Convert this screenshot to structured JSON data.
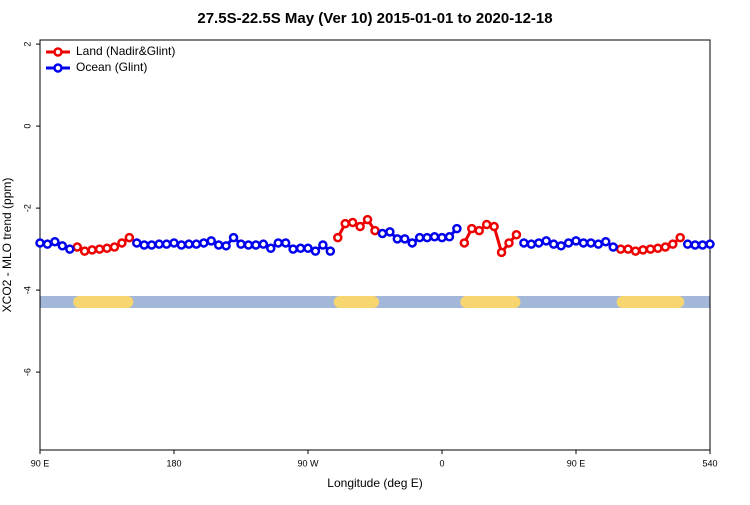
{
  "chart_data": {
    "type": "line",
    "title": "27.5S-22.5S May (Ver 10)   2015-01-01 to 2020-12-18",
    "x_label": "Longitude (deg E)",
    "y_label": "XCO2 - MLO trend (ppm)",
    "x": [
      90,
      95,
      100,
      105,
      110,
      115,
      120,
      125,
      130,
      135,
      140,
      145,
      150,
      155,
      160,
      165,
      170,
      175,
      180,
      185,
      190,
      195,
      200,
      205,
      210,
      215,
      220,
      225,
      230,
      235,
      240,
      245,
      250,
      255,
      260,
      265,
      270,
      275,
      280,
      285,
      290,
      295,
      300,
      305,
      310,
      315,
      320,
      325,
      330,
      335,
      340,
      345,
      350,
      355,
      360,
      365,
      370,
      375,
      380,
      385,
      390,
      395,
      400,
      405,
      410,
      415,
      420,
      425,
      430,
      435,
      440,
      445,
      450,
      455,
      460,
      465,
      470,
      475,
      480,
      485,
      490,
      495,
      500,
      505,
      510,
      515,
      520,
      525,
      530,
      535,
      540
    ],
    "series": [
      {
        "name": "Land (Nadir&Glint)",
        "color": "#ee0000",
        "values": [
          null,
          null,
          null,
          null,
          null,
          -2.95,
          -3.05,
          -3.02,
          -3.0,
          -2.98,
          -2.95,
          -2.85,
          -2.72,
          null,
          null,
          null,
          null,
          null,
          null,
          null,
          null,
          null,
          null,
          null,
          null,
          null,
          null,
          null,
          null,
          null,
          null,
          null,
          null,
          null,
          null,
          null,
          null,
          null,
          null,
          null,
          -2.72,
          -2.38,
          -2.35,
          -2.45,
          -2.28,
          -2.55,
          null,
          null,
          null,
          null,
          null,
          null,
          null,
          null,
          null,
          null,
          null,
          -2.85,
          -2.5,
          -2.55,
          -2.4,
          -2.45,
          -3.08,
          -2.85,
          -2.65,
          null,
          null,
          null,
          null,
          null,
          null,
          null,
          null,
          null,
          null,
          null,
          null,
          null,
          -3.0,
          -3.0,
          -3.05,
          -3.02,
          -3.0,
          -2.98,
          -2.95,
          -2.88,
          -2.72,
          null,
          null,
          null,
          null
        ]
      },
      {
        "name": "Ocean (Glint)",
        "color": "#0000ee",
        "values": [
          -2.85,
          -2.88,
          -2.82,
          -2.92,
          -3.0,
          null,
          null,
          null,
          null,
          null,
          null,
          null,
          null,
          -2.85,
          -2.9,
          -2.9,
          -2.88,
          -2.88,
          -2.85,
          -2.9,
          -2.88,
          -2.88,
          -2.85,
          -2.8,
          -2.9,
          -2.92,
          -2.72,
          -2.88,
          -2.9,
          -2.9,
          -2.88,
          -2.98,
          -2.85,
          -2.85,
          -3.0,
          -2.98,
          -2.98,
          -3.05,
          -2.9,
          -3.05,
          null,
          null,
          null,
          null,
          null,
          null,
          -2.62,
          -2.58,
          -2.75,
          -2.75,
          -2.85,
          -2.72,
          -2.72,
          -2.7,
          -2.72,
          -2.7,
          -2.5,
          null,
          null,
          null,
          null,
          null,
          null,
          null,
          null,
          -2.85,
          -2.88,
          -2.85,
          -2.8,
          -2.88,
          -2.92,
          -2.85,
          -2.8,
          -2.85,
          -2.85,
          -2.88,
          -2.82,
          -2.95,
          null,
          null,
          null,
          null,
          null,
          null,
          null,
          null,
          null,
          -2.88,
          -2.9,
          -2.9,
          -2.88
        ]
      }
    ],
    "xlim": [
      90,
      540
    ],
    "ylim": [
      -7.9,
      2.1
    ],
    "xticks": [
      {
        "value": 90,
        "label": "90 E"
      },
      180,
      {
        "value": 270,
        "label": "90 W"
      },
      {
        "value": 360,
        "label": "0"
      },
      {
        "value": 450,
        "label": "90 E"
      },
      540
    ],
    "yticks": [
      -6,
      -4,
      -2,
      0,
      2
    ],
    "legend": "top-left"
  }
}
